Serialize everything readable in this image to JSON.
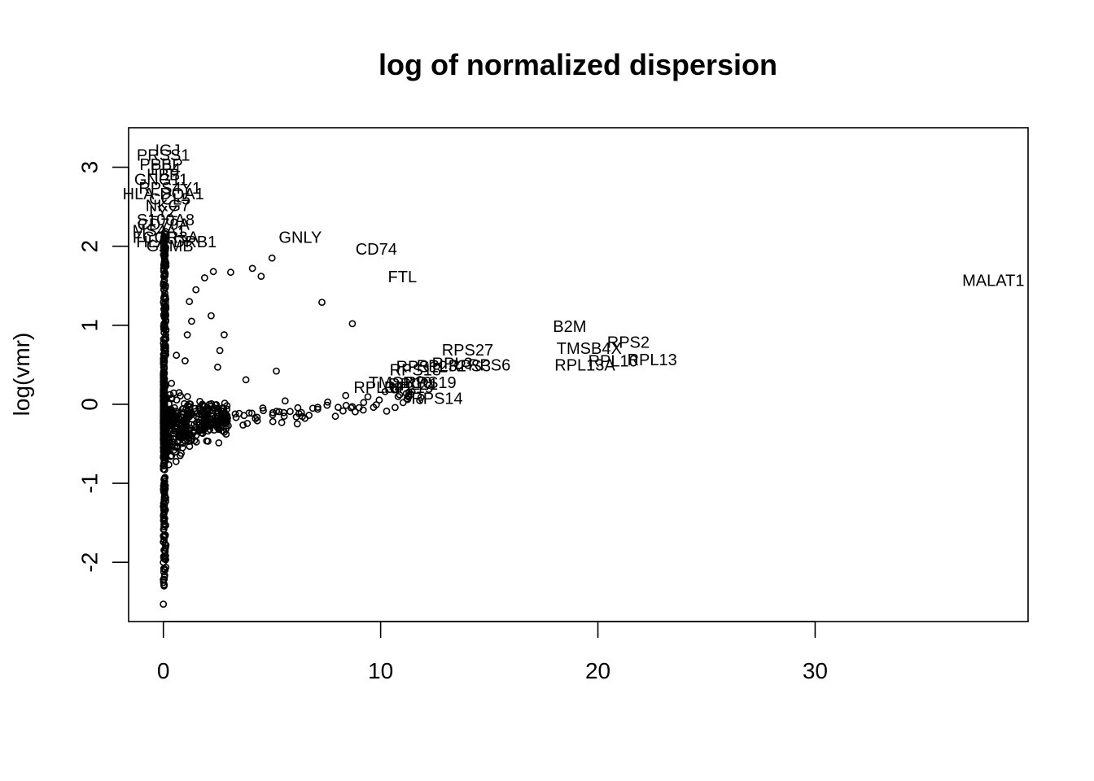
{
  "chart_data": {
    "type": "scatter",
    "title": "log of normalized dispersion",
    "xlabel": "",
    "ylabel": "log(vmr)",
    "xlim": [
      -1.6,
      39.8
    ],
    "ylim": [
      -2.75,
      3.5
    ],
    "xticks": [
      0,
      10,
      20,
      30
    ],
    "yticks": [
      -2,
      -1,
      0,
      1,
      2,
      3
    ],
    "grid": false,
    "legend": "none",
    "labeled_points": [
      {
        "label": "MALAT1",
        "x": 38.2,
        "y": 1.55
      },
      {
        "label": "GNLY",
        "x": 6.3,
        "y": 2.1
      },
      {
        "label": "CD74",
        "x": 9.8,
        "y": 1.95
      },
      {
        "label": "FTL",
        "x": 11.0,
        "y": 1.6
      },
      {
        "label": "B2M",
        "x": 18.7,
        "y": 0.97
      },
      {
        "label": "RPS2",
        "x": 21.4,
        "y": 0.77
      },
      {
        "label": "TMSB4X",
        "x": 19.6,
        "y": 0.69
      },
      {
        "label": "RPL13",
        "x": 22.5,
        "y": 0.55
      },
      {
        "label": "RPL10",
        "x": 20.7,
        "y": 0.53
      },
      {
        "label": "RPL13A",
        "x": 19.4,
        "y": 0.48
      },
      {
        "label": "RPS27",
        "x": 14.0,
        "y": 0.67
      },
      {
        "label": "RPS6",
        "x": 15.0,
        "y": 0.48
      },
      {
        "label": "RPL3",
        "x": 13.3,
        "y": 0.5
      },
      {
        "label": "RPS3",
        "x": 14.1,
        "y": 0.47
      },
      {
        "label": "RPL32",
        "x": 12.8,
        "y": 0.47
      },
      {
        "label": "RPS12",
        "x": 11.9,
        "y": 0.46
      },
      {
        "label": "RPS18",
        "x": 11.6,
        "y": 0.42
      },
      {
        "label": "RPS19",
        "x": 12.3,
        "y": 0.26
      },
      {
        "label": "TMSB10",
        "x": 10.9,
        "y": 0.26
      },
      {
        "label": "RPL21",
        "x": 11.5,
        "y": 0.24
      },
      {
        "label": "RPL34",
        "x": 9.9,
        "y": 0.2
      },
      {
        "label": "RPL19",
        "x": 11.3,
        "y": 0.2
      },
      {
        "label": "RPS14",
        "x": 12.6,
        "y": 0.06
      },
      {
        "label": "IGJ",
        "x": 0.2,
        "y": 3.2
      },
      {
        "label": "PRSS1",
        "x": 0.0,
        "y": 3.14
      },
      {
        "label": "PPBP",
        "x": -0.1,
        "y": 3.02
      },
      {
        "label": "PF4",
        "x": 0.1,
        "y": 2.96
      },
      {
        "label": "HBB",
        "x": 0.0,
        "y": 2.89
      },
      {
        "label": "GNG11",
        "x": -0.1,
        "y": 2.83
      },
      {
        "label": "RPS4Y1",
        "x": 0.3,
        "y": 2.72
      },
      {
        "label": "HLA-DQA1",
        "x": 0.0,
        "y": 2.65
      },
      {
        "label": "CCL5",
        "x": 0.3,
        "y": 2.58
      },
      {
        "label": "NKG7",
        "x": 0.2,
        "y": 2.5
      },
      {
        "label": "LYZ",
        "x": 0.0,
        "y": 2.42
      },
      {
        "label": "S100A8",
        "x": 0.1,
        "y": 2.32
      },
      {
        "label": "CD79A",
        "x": 0.0,
        "y": 2.26
      },
      {
        "label": "MS4A1",
        "x": -0.2,
        "y": 2.18
      },
      {
        "label": "FCGR3A",
        "x": 0.1,
        "y": 2.1
      },
      {
        "label": "HLA-DRB1",
        "x": 0.6,
        "y": 2.04
      },
      {
        "label": "GZMB",
        "x": 0.3,
        "y": 1.99
      }
    ],
    "point_summary": "Dense vertical column of open-circle points at x near 0 spanning y -2.5 to 2.3, a fan of points from x 0 to 3 around y -0.4 to 0.5, and a scattered trail of points x 3 to 12 around y 0 to 0.4"
  }
}
